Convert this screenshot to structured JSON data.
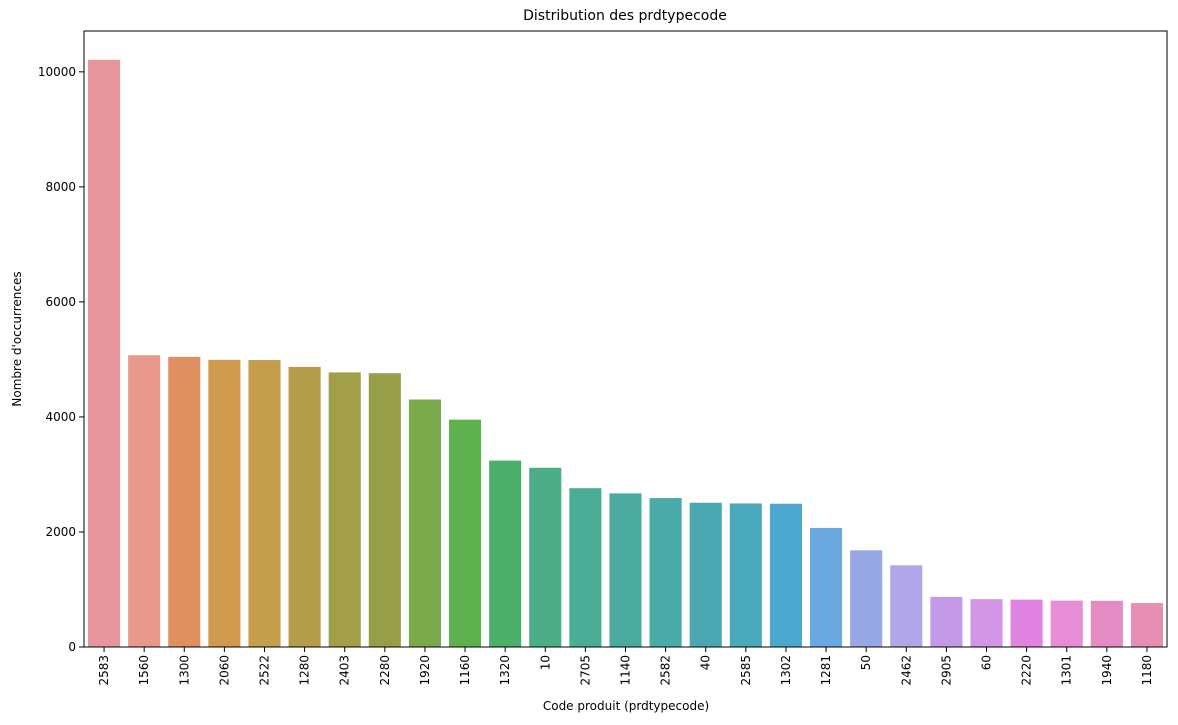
{
  "chart_data": {
    "type": "bar",
    "title": "Distribution des prdtypecode",
    "xlabel": "Code produit (prdtypecode)",
    "ylabel": "Nombre d'occurrences",
    "ylim": [
      0,
      10710
    ],
    "yticks": [
      0,
      2000,
      4000,
      6000,
      8000,
      10000
    ],
    "grid": false,
    "legend": "none",
    "categories": [
      "2583",
      "1560",
      "1300",
      "2060",
      "2522",
      "1280",
      "2403",
      "2280",
      "1920",
      "1160",
      "1320",
      "10",
      "2705",
      "1140",
      "2582",
      "40",
      "2585",
      "1302",
      "1281",
      "50",
      "2462",
      "2905",
      "60",
      "2220",
      "1301",
      "1940",
      "1180"
    ],
    "values": [
      10209,
      5073,
      5045,
      4993,
      4989,
      4870,
      4774,
      4760,
      4303,
      3953,
      3241,
      3116,
      2761,
      2671,
      2589,
      2508,
      2496,
      2491,
      2070,
      1681,
      1421,
      872,
      832,
      824,
      807,
      803,
      764
    ],
    "colors": [
      "#e8969e",
      "#e8998c",
      "#e09060",
      "#cf9a4e",
      "#c49e4c",
      "#b49e4a",
      "#a39e48",
      "#979e48",
      "#7aaa4c",
      "#5db14e",
      "#4cb06b",
      "#4cae86",
      "#4cad97",
      "#4bab9f",
      "#4aaba8",
      "#4ba8b3",
      "#4ba9bd",
      "#4ba7cf",
      "#6aa8e0",
      "#98a8e6",
      "#b0a6e8",
      "#c49ae8",
      "#d396e6",
      "#e083e2",
      "#e68dd6",
      "#e68cc4",
      "#e68fb2"
    ]
  }
}
